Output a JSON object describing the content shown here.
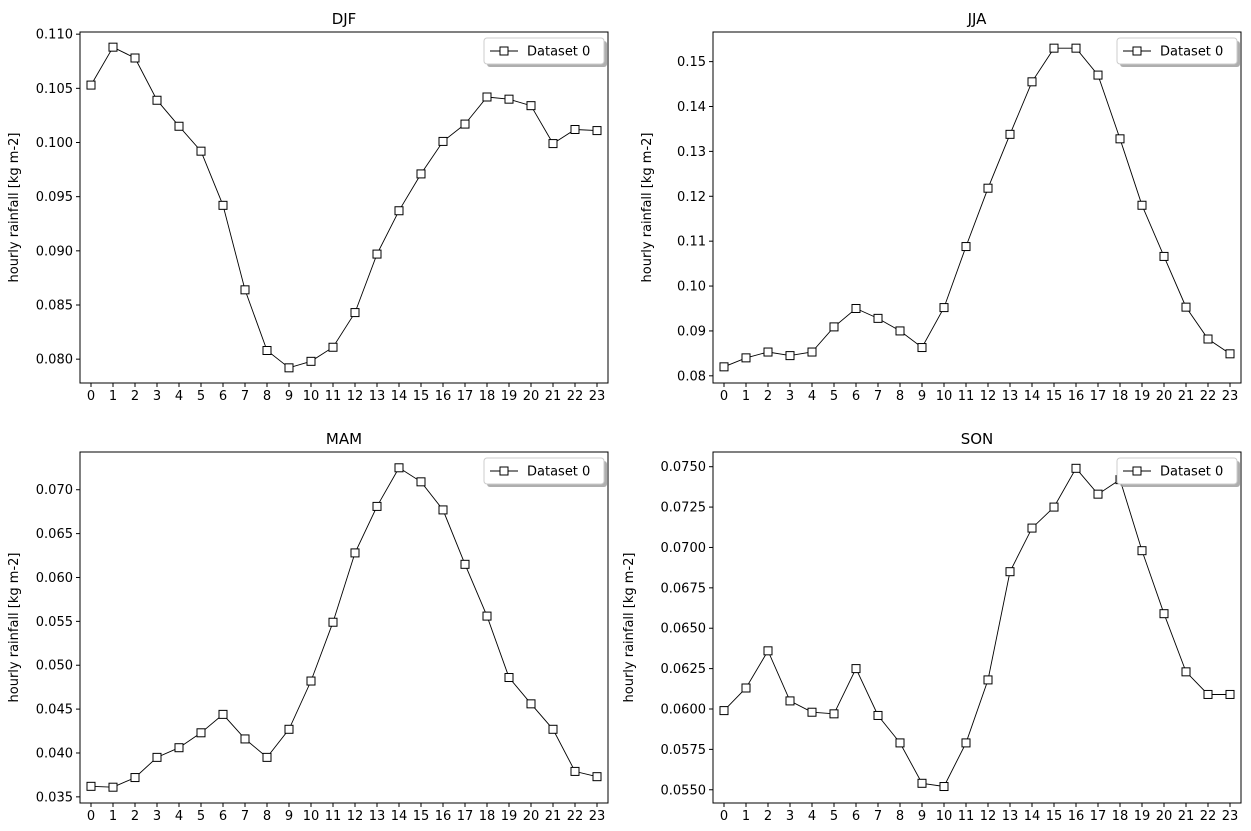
{
  "chart_data": [
    {
      "type": "line",
      "title": "DJF",
      "xlabel": "",
      "ylabel": "hourly rainfall  [kg m-2]",
      "x": [
        0,
        1,
        2,
        3,
        4,
        5,
        6,
        7,
        8,
        9,
        10,
        11,
        12,
        13,
        14,
        15,
        16,
        17,
        18,
        19,
        20,
        21,
        22,
        23
      ],
      "xticks": [
        "0",
        "1",
        "2",
        "3",
        "4",
        "5",
        "6",
        "7",
        "8",
        "9",
        "10",
        "11",
        "12",
        "13",
        "14",
        "15",
        "16",
        "17",
        "18",
        "19",
        "20",
        "21",
        "22",
        "23"
      ],
      "ylim": [
        0.0778,
        0.1102
      ],
      "yticks": [
        0.08,
        0.085,
        0.09,
        0.095,
        0.1,
        0.105,
        0.11
      ],
      "ytick_labels": [
        "0.080",
        "0.085",
        "0.090",
        "0.095",
        "0.100",
        "0.105",
        "0.110"
      ],
      "grid": false,
      "legend": "top-right",
      "series": [
        {
          "name": "Dataset 0",
          "marker": "square",
          "values": [
            0.1053,
            0.1088,
            0.1078,
            0.1039,
            0.1015,
            0.0992,
            0.0942,
            0.0864,
            0.0808,
            0.0792,
            0.0798,
            0.0811,
            0.0843,
            0.0897,
            0.0937,
            0.0971,
            0.1001,
            0.1017,
            0.1042,
            0.104,
            0.1034,
            0.0999,
            0.1012,
            0.1011
          ]
        }
      ]
    },
    {
      "type": "line",
      "title": "JJA",
      "xlabel": "",
      "ylabel": "hourly rainfall  [kg m-2]",
      "x": [
        0,
        1,
        2,
        3,
        4,
        5,
        6,
        7,
        8,
        9,
        10,
        11,
        12,
        13,
        14,
        15,
        16,
        17,
        18,
        19,
        20,
        21,
        22,
        23
      ],
      "xticks": [
        "0",
        "1",
        "2",
        "3",
        "4",
        "5",
        "6",
        "7",
        "8",
        "9",
        "10",
        "11",
        "12",
        "13",
        "14",
        "15",
        "16",
        "17",
        "18",
        "19",
        "20",
        "21",
        "22",
        "23"
      ],
      "ylim": [
        0.0784,
        0.1566
      ],
      "yticks": [
        0.08,
        0.09,
        0.1,
        0.11,
        0.12,
        0.13,
        0.14,
        0.15
      ],
      "ytick_labels": [
        "0.08",
        "0.09",
        "0.10",
        "0.11",
        "0.12",
        "0.13",
        "0.14",
        "0.15"
      ],
      "grid": false,
      "legend": "top-right",
      "series": [
        {
          "name": "Dataset 0",
          "marker": "square",
          "values": [
            0.082,
            0.084,
            0.0853,
            0.0845,
            0.0853,
            0.0909,
            0.095,
            0.0928,
            0.09,
            0.0863,
            0.0952,
            0.1088,
            0.1218,
            0.1338,
            0.1455,
            0.153,
            0.153,
            0.147,
            0.1328,
            0.118,
            0.1066,
            0.0953,
            0.0882,
            0.0849
          ]
        }
      ]
    },
    {
      "type": "line",
      "title": "MAM",
      "xlabel": "",
      "ylabel": "hourly rainfall  [kg m-2]",
      "x": [
        0,
        1,
        2,
        3,
        4,
        5,
        6,
        7,
        8,
        9,
        10,
        11,
        12,
        13,
        14,
        15,
        16,
        17,
        18,
        19,
        20,
        21,
        22,
        23
      ],
      "xticks": [
        "0",
        "1",
        "2",
        "3",
        "4",
        "5",
        "6",
        "7",
        "8",
        "9",
        "10",
        "11",
        "12",
        "13",
        "14",
        "15",
        "16",
        "17",
        "18",
        "19",
        "20",
        "21",
        "22",
        "23"
      ],
      "ylim": [
        0.0343,
        0.0743
      ],
      "yticks": [
        0.035,
        0.04,
        0.045,
        0.05,
        0.055,
        0.06,
        0.065,
        0.07
      ],
      "ytick_labels": [
        "0.035",
        "0.040",
        "0.045",
        "0.050",
        "0.055",
        "0.060",
        "0.065",
        "0.070"
      ],
      "grid": false,
      "legend": "top-right",
      "series": [
        {
          "name": "Dataset 0",
          "marker": "square",
          "values": [
            0.0362,
            0.0361,
            0.0372,
            0.0395,
            0.0406,
            0.0423,
            0.0444,
            0.0416,
            0.0395,
            0.0427,
            0.0482,
            0.0549,
            0.0628,
            0.0681,
            0.0725,
            0.0709,
            0.0677,
            0.0615,
            0.0556,
            0.0486,
            0.0456,
            0.0427,
            0.0379,
            0.0373
          ]
        }
      ]
    },
    {
      "type": "line",
      "title": "SON",
      "xlabel": "",
      "ylabel": "hourly rainfall  [kg m-2]",
      "x": [
        0,
        1,
        2,
        3,
        4,
        5,
        6,
        7,
        8,
        9,
        10,
        11,
        12,
        13,
        14,
        15,
        16,
        17,
        18,
        19,
        20,
        21,
        22,
        23
      ],
      "xticks": [
        "0",
        "1",
        "2",
        "3",
        "4",
        "5",
        "6",
        "7",
        "8",
        "9",
        "10",
        "11",
        "12",
        "13",
        "14",
        "15",
        "16",
        "17",
        "18",
        "19",
        "20",
        "21",
        "22",
        "23"
      ],
      "ylim": [
        0.05418,
        0.07591
      ],
      "yticks": [
        0.055,
        0.0575,
        0.06,
        0.0625,
        0.065,
        0.0675,
        0.07,
        0.0725,
        0.075
      ],
      "ytick_labels": [
        "0.0550",
        "0.0575",
        "0.0600",
        "0.0625",
        "0.0650",
        "0.0675",
        "0.0700",
        "0.0725",
        "0.0750"
      ],
      "grid": false,
      "legend": "top-right",
      "series": [
        {
          "name": "Dataset 0",
          "marker": "square",
          "values": [
            0.0599,
            0.0613,
            0.0636,
            0.0605,
            0.0598,
            0.0597,
            0.0625,
            0.0596,
            0.0579,
            0.0554,
            0.0552,
            0.0579,
            0.0618,
            0.0685,
            0.0712,
            0.0725,
            0.0749,
            0.0733,
            0.0742,
            0.0698,
            0.0659,
            0.0623,
            0.0609,
            0.0609
          ]
        }
      ]
    }
  ]
}
